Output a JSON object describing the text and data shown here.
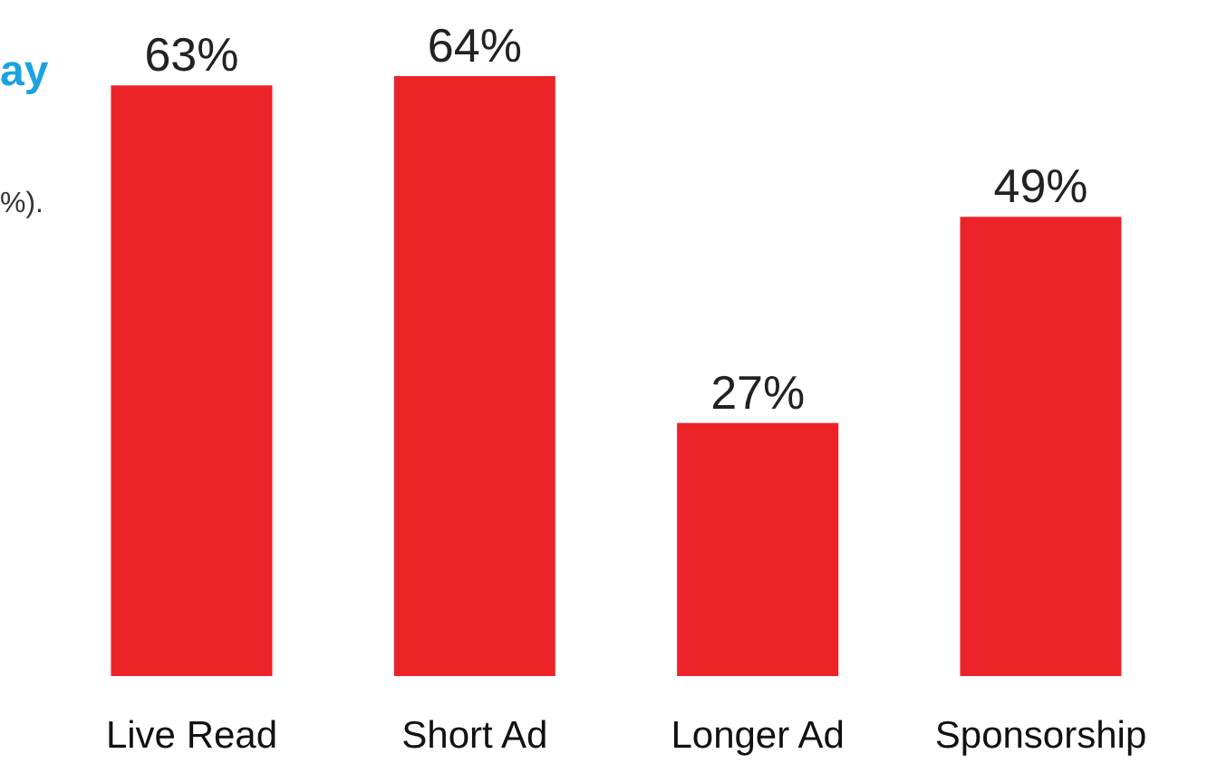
{
  "chart_data": {
    "type": "bar",
    "categories": [
      "Live Read",
      "Short Ad",
      "Longer Ad",
      "Sponsorship"
    ],
    "values": [
      63,
      64,
      27,
      49
    ],
    "color": "#ee2229",
    "value_labels": [
      "63%",
      "64%",
      "27%",
      "49%"
    ],
    "annotations": [
      "ay",
      "%)."
    ]
  }
}
